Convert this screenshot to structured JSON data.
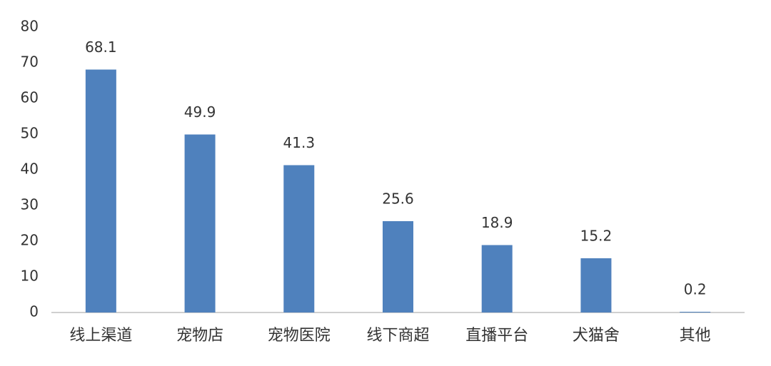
{
  "chart_data": {
    "type": "bar",
    "categories": [
      "线上渠道",
      "宠物店",
      "宠物医院",
      "线下商超",
      "直播平台",
      "犬猫舍",
      "其他"
    ],
    "values": [
      68.1,
      49.9,
      41.3,
      25.6,
      18.9,
      15.2,
      0.2
    ],
    "color": "#4f81bd",
    "ylim": [
      0,
      80
    ],
    "yticks": [
      0,
      10,
      20,
      30,
      40,
      50,
      60,
      70,
      80
    ],
    "grid": false
  }
}
